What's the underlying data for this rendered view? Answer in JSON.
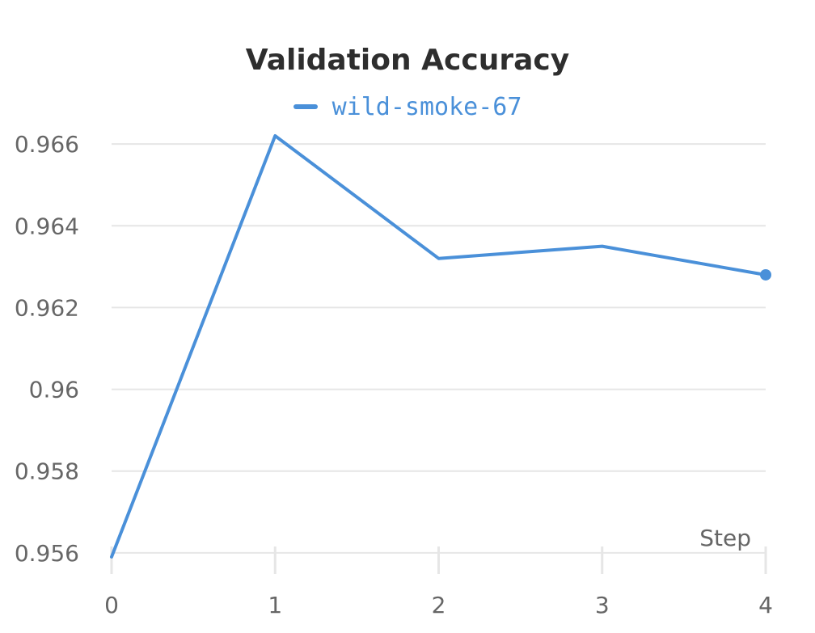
{
  "chart_data": {
    "type": "line",
    "title": "Validation Accuracy",
    "xlabel": "Step",
    "ylabel": "",
    "x": [
      0,
      1,
      2,
      3,
      4
    ],
    "series": [
      {
        "name": "wild-smoke-67",
        "color": "#4a90d9",
        "values": [
          0.9559,
          0.9662,
          0.9632,
          0.9635,
          0.9628
        ]
      }
    ],
    "xlim": [
      0,
      4
    ],
    "ylim": [
      0.9558,
      0.9662
    ],
    "x_ticks": [
      "0",
      "1",
      "2",
      "3",
      "4"
    ],
    "y_ticks": [
      "0.956",
      "0.958",
      "0.96",
      "0.962",
      "0.964",
      "0.966"
    ],
    "y_tick_values": [
      0.956,
      0.958,
      0.96,
      0.962,
      0.964,
      0.966
    ],
    "grid": true,
    "legend_position": "top-center",
    "last_point_marker": true
  }
}
